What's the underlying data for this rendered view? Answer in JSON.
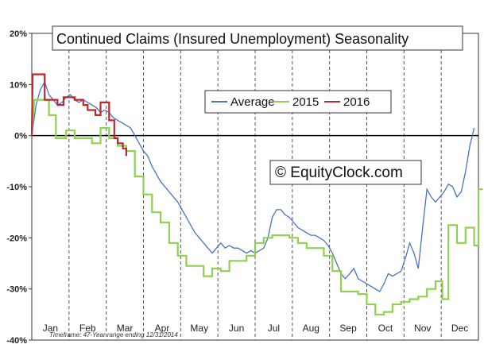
{
  "chart_data": {
    "type": "line",
    "title": "Continued Claims (Insured Unemployment) Seasonality",
    "watermark": "© EquityClock.com",
    "footnote": "Timeframe: 47-Year range ending 12/31/2014",
    "months": [
      "Jan",
      "Feb",
      "Mar",
      "Apr",
      "May",
      "Jun",
      "Jul",
      "Aug",
      "Sep",
      "Oct",
      "Nov",
      "Dec"
    ],
    "y_ticks": [
      "20%",
      "10%",
      "0%",
      "-10%",
      "-20%",
      "-30%",
      "-40%"
    ],
    "ylim": [
      -40,
      20
    ],
    "xlim": [
      0,
      52
    ],
    "grid": "vertical dashed at month boundaries",
    "legend_position": "top-center",
    "series": [
      {
        "name": "Average",
        "color": "#4a72c4",
        "step": false,
        "points": [
          [
            0,
            0
          ],
          [
            0.5,
            6
          ],
          [
            1,
            9
          ],
          [
            1.5,
            10.5
          ],
          [
            2,
            8
          ],
          [
            2.5,
            7
          ],
          [
            3,
            6
          ],
          [
            3.5,
            6.5
          ],
          [
            4,
            7.5
          ],
          [
            4.5,
            8
          ],
          [
            5,
            7
          ],
          [
            5.5,
            6.5
          ],
          [
            6,
            7
          ],
          [
            6.5,
            6.5
          ],
          [
            7,
            6
          ],
          [
            7.5,
            5.5
          ],
          [
            8,
            4.5
          ],
          [
            8.5,
            5
          ],
          [
            9,
            4.5
          ],
          [
            9.5,
            3.5
          ],
          [
            10,
            3
          ],
          [
            10.5,
            2.5
          ],
          [
            11,
            2
          ],
          [
            11.5,
            1.5
          ],
          [
            12,
            0
          ],
          [
            12.5,
            -1.5
          ],
          [
            13,
            -3
          ],
          [
            13.5,
            -4
          ],
          [
            14,
            -6
          ],
          [
            14.5,
            -7.5
          ],
          [
            15,
            -9
          ],
          [
            15.5,
            -10
          ],
          [
            16,
            -11
          ],
          [
            16.5,
            -12
          ],
          [
            17,
            -13
          ],
          [
            17.5,
            -14.5
          ],
          [
            18,
            -16
          ],
          [
            18.5,
            -17.5
          ],
          [
            19,
            -19
          ],
          [
            19.5,
            -20
          ],
          [
            20,
            -21
          ],
          [
            20.5,
            -22
          ],
          [
            21,
            -23
          ],
          [
            21.5,
            -22
          ],
          [
            22,
            -21
          ],
          [
            22.5,
            -22
          ],
          [
            23,
            -21.5
          ],
          [
            23.5,
            -22
          ],
          [
            24,
            -22
          ],
          [
            24.5,
            -22.5
          ],
          [
            25,
            -23
          ],
          [
            25.5,
            -22.5
          ],
          [
            26,
            -23
          ],
          [
            26.5,
            -22.5
          ],
          [
            27,
            -22
          ],
          [
            27.5,
            -20
          ],
          [
            28,
            -16
          ],
          [
            28.5,
            -14.5
          ],
          [
            29,
            -14.5
          ],
          [
            29.5,
            -15.5
          ],
          [
            30,
            -16
          ],
          [
            30.5,
            -17
          ],
          [
            31,
            -18
          ],
          [
            31.5,
            -18.5
          ],
          [
            32,
            -19
          ],
          [
            32.5,
            -19.5
          ],
          [
            33,
            -19.5
          ],
          [
            33.5,
            -20
          ],
          [
            34,
            -20.5
          ],
          [
            34.5,
            -21.5
          ],
          [
            35,
            -23
          ],
          [
            35.5,
            -25
          ],
          [
            36,
            -27
          ],
          [
            36.5,
            -28
          ],
          [
            37,
            -27
          ],
          [
            37.5,
            -26
          ],
          [
            38,
            -28
          ],
          [
            38.5,
            -28.5
          ],
          [
            39,
            -29
          ],
          [
            39.5,
            -29.5
          ],
          [
            40,
            -30
          ],
          [
            40.5,
            -30.5
          ],
          [
            41,
            -29
          ],
          [
            41.5,
            -27
          ],
          [
            42,
            -27.5
          ],
          [
            42.5,
            -27
          ],
          [
            43,
            -26.5
          ],
          [
            43.5,
            -24
          ],
          [
            44,
            -21
          ],
          [
            44.5,
            -23
          ],
          [
            45,
            -26
          ],
          [
            45.5,
            -18
          ],
          [
            46,
            -10.5
          ],
          [
            46.5,
            -12
          ],
          [
            47,
            -13
          ],
          [
            47.5,
            -12
          ],
          [
            48,
            -11
          ],
          [
            48.5,
            -9.5
          ],
          [
            49,
            -10
          ],
          [
            49.5,
            -12
          ],
          [
            50,
            -11
          ],
          [
            50.5,
            -7
          ],
          [
            51,
            -2
          ],
          [
            51.5,
            1.5
          ]
        ]
      },
      {
        "name": "2015",
        "color": "#8fd14f",
        "step": true,
        "points": [
          [
            0,
            0
          ],
          [
            0.3,
            7
          ],
          [
            2,
            7
          ],
          [
            2,
            4
          ],
          [
            2.8,
            4
          ],
          [
            2.8,
            -0.5
          ],
          [
            4,
            -0.5
          ],
          [
            4,
            1
          ],
          [
            5,
            1
          ],
          [
            5,
            -0.5
          ],
          [
            7,
            -0.5
          ],
          [
            7,
            -1.5
          ],
          [
            8,
            -1.5
          ],
          [
            8,
            1.5
          ],
          [
            9,
            1.5
          ],
          [
            9,
            -0.5
          ],
          [
            10,
            -0.5
          ],
          [
            10,
            -2
          ],
          [
            11,
            -2
          ],
          [
            11,
            -3
          ],
          [
            12,
            -3
          ],
          [
            12,
            -8
          ],
          [
            13,
            -8
          ],
          [
            13,
            -11.5
          ],
          [
            14,
            -11.5
          ],
          [
            14,
            -15
          ],
          [
            15,
            -15
          ],
          [
            15,
            -17
          ],
          [
            16,
            -17
          ],
          [
            16,
            -21
          ],
          [
            17,
            -21
          ],
          [
            17,
            -23.5
          ],
          [
            18,
            -23.5
          ],
          [
            18,
            -25.5
          ],
          [
            20,
            -25.5
          ],
          [
            20,
            -27.5
          ],
          [
            21,
            -27.5
          ],
          [
            21,
            -26
          ],
          [
            22,
            -26
          ],
          [
            22,
            -26.5
          ],
          [
            23,
            -26.5
          ],
          [
            23,
            -24.5
          ],
          [
            25,
            -24.5
          ],
          [
            25,
            -23.5
          ],
          [
            26,
            -23.5
          ],
          [
            26,
            -21
          ],
          [
            27,
            -21
          ],
          [
            27,
            -20
          ],
          [
            28,
            -20
          ],
          [
            28,
            -19.5
          ],
          [
            30,
            -19.5
          ],
          [
            30,
            -20
          ],
          [
            31,
            -20
          ],
          [
            31,
            -21
          ],
          [
            32,
            -21
          ],
          [
            32,
            -22
          ],
          [
            34,
            -22
          ],
          [
            34,
            -23.5
          ],
          [
            35,
            -23.5
          ],
          [
            35,
            -26.5
          ],
          [
            36,
            -26.5
          ],
          [
            36,
            -30.5
          ],
          [
            38,
            -30.5
          ],
          [
            38,
            -31
          ],
          [
            39,
            -31
          ],
          [
            39,
            -33
          ],
          [
            40,
            -33
          ],
          [
            40,
            -35
          ],
          [
            41,
            -35
          ],
          [
            41,
            -34.5
          ],
          [
            42,
            -34.5
          ],
          [
            42,
            -33
          ],
          [
            43,
            -33
          ],
          [
            43,
            -32.5
          ],
          [
            44,
            -32.5
          ],
          [
            44,
            -32
          ],
          [
            45,
            -32
          ],
          [
            45,
            -31.5
          ],
          [
            46,
            -31.5
          ],
          [
            46,
            -30
          ],
          [
            47,
            -30
          ],
          [
            47,
            -28.5
          ],
          [
            47.8,
            -28.5
          ],
          [
            47.8,
            -32
          ],
          [
            48.5,
            -32
          ],
          [
            48.5,
            -17.5
          ],
          [
            49.5,
            -17.5
          ],
          [
            49.5,
            -21
          ],
          [
            50.5,
            -21
          ],
          [
            50.5,
            -18
          ],
          [
            51.5,
            -18
          ],
          [
            51.5,
            -21.5
          ],
          [
            52,
            -21.5
          ],
          [
            52,
            -10.5
          ],
          [
            52.5,
            -10.5
          ]
        ]
      },
      {
        "name": "2016",
        "color": "#c0272d",
        "step": true,
        "points": [
          [
            0,
            0
          ],
          [
            0.1,
            12
          ],
          [
            1.5,
            12
          ],
          [
            1.5,
            7
          ],
          [
            3,
            7
          ],
          [
            3,
            6
          ],
          [
            3.7,
            6
          ],
          [
            3.7,
            7.5
          ],
          [
            5,
            7.5
          ],
          [
            5,
            7
          ],
          [
            6,
            7
          ],
          [
            6,
            6
          ],
          [
            6.5,
            6
          ],
          [
            6.5,
            5
          ],
          [
            7.4,
            5
          ],
          [
            7.4,
            4
          ],
          [
            8,
            4
          ],
          [
            8,
            6.5
          ],
          [
            9,
            6.5
          ],
          [
            9,
            3
          ],
          [
            9.6,
            3
          ],
          [
            9.6,
            -0.5
          ],
          [
            10,
            -0.5
          ],
          [
            10,
            -1.5
          ],
          [
            10.6,
            -1.5
          ],
          [
            10.6,
            -2.5
          ],
          [
            11,
            -2.5
          ],
          [
            11,
            -4
          ]
        ]
      }
    ]
  }
}
